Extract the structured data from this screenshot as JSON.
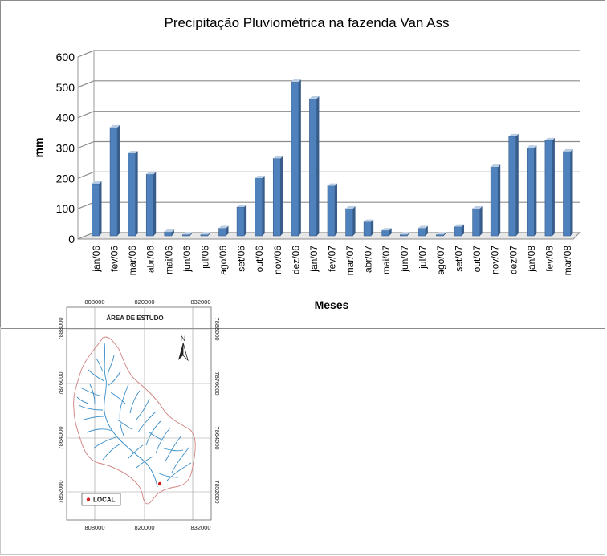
{
  "chart_data": {
    "type": "bar",
    "title": "Precipitação Pluviométrica na fazenda Van Ass",
    "xlabel": "Meses",
    "ylabel": "mm",
    "ylim": [
      0,
      600
    ],
    "yticks": [
      0,
      100,
      200,
      300,
      400,
      500,
      600
    ],
    "grid": true,
    "legend": "none",
    "bar_color": "#4f81bd",
    "categories": [
      "jan/06",
      "fev/06",
      "mar/06",
      "abr/06",
      "mai/06",
      "jun/06",
      "jul/06",
      "ago/06",
      "set/06",
      "out/06",
      "nov/06",
      "dez/06",
      "jan/07",
      "fev/07",
      "mar/07",
      "abr/07",
      "mai/07",
      "jun/07",
      "jul/07",
      "ago/07",
      "set/07",
      "out/07",
      "nov/07",
      "dez/07",
      "jan/08",
      "fev/08",
      "mar/08"
    ],
    "values": [
      172,
      357,
      272,
      203,
      13,
      0,
      0,
      25,
      95,
      190,
      255,
      507,
      452,
      165,
      90,
      46,
      18,
      0,
      25,
      0,
      30,
      90,
      227,
      328,
      290,
      315,
      278
    ]
  },
  "map": {
    "title": "ÁREA DE ESTUDO",
    "north_label": "N",
    "legend_label": "LOCAL",
    "x_ticks": [
      "808000",
      "820000",
      "832000"
    ],
    "y_ticks": [
      "7888000",
      "7876000",
      "7864000",
      "7852000"
    ],
    "boundary_color": "#d08080",
    "river_color": "#3a8ec8",
    "marker_color": "#cc2222"
  }
}
